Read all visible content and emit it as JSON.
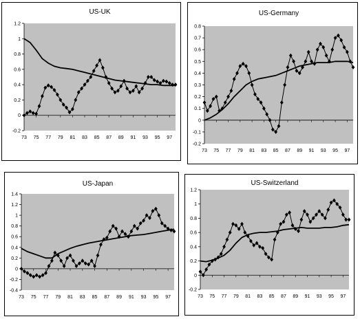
{
  "chart_data": [
    {
      "type": "line",
      "title": "US-UK",
      "ylim": [
        -0.2,
        1.2
      ],
      "yticks": [
        -0.2,
        0,
        0.2,
        0.4,
        0.6,
        0.8,
        1,
        1.2
      ],
      "xlim": [
        1973,
        1998
      ],
      "xticks": [
        "73",
        "75",
        "77",
        "79",
        "81",
        "83",
        "85",
        "87",
        "89",
        "91",
        "93",
        "95",
        "97"
      ],
      "grid": false,
      "legend": "none",
      "plot_bg": "#c0c0c0",
      "series": [
        {
          "marker": "diamond",
          "x": [
            1973.0,
            1973.5,
            1974.0,
            1974.5,
            1975.0,
            1975.5,
            1976.0,
            1976.5,
            1977.0,
            1977.5,
            1978.0,
            1978.5,
            1979.0,
            1979.5,
            1980.0,
            1980.5,
            1981.0,
            1981.5,
            1982.0,
            1982.5,
            1983.0,
            1983.5,
            1984.0,
            1984.5,
            1985.0,
            1985.5,
            1986.0,
            1986.5,
            1987.0,
            1987.5,
            1988.0,
            1988.5,
            1989.0,
            1989.5,
            1990.0,
            1990.5,
            1991.0,
            1991.5,
            1992.0,
            1992.5,
            1993.0,
            1993.5,
            1994.0,
            1994.5,
            1995.0,
            1995.5,
            1996.0,
            1996.5,
            1997.0,
            1997.5,
            1998.0
          ],
          "values": [
            0.0,
            0.03,
            0.05,
            0.03,
            0.02,
            0.12,
            0.25,
            0.36,
            0.39,
            0.37,
            0.33,
            0.27,
            0.2,
            0.14,
            0.1,
            0.04,
            0.08,
            0.2,
            0.3,
            0.35,
            0.4,
            0.45,
            0.5,
            0.58,
            0.65,
            0.72,
            0.62,
            0.5,
            0.42,
            0.35,
            0.3,
            0.32,
            0.38,
            0.45,
            0.35,
            0.3,
            0.32,
            0.38,
            0.3,
            0.35,
            0.42,
            0.5,
            0.5,
            0.46,
            0.44,
            0.42,
            0.45,
            0.44,
            0.42,
            0.4,
            0.4
          ]
        },
        {
          "marker": "none",
          "x": [
            1973,
            1974,
            1975,
            1976,
            1977,
            1978,
            1979,
            1980,
            1981,
            1982,
            1983,
            1984,
            1985,
            1986,
            1987,
            1988,
            1989,
            1990,
            1991,
            1992,
            1993,
            1994,
            1995,
            1996,
            1997,
            1998
          ],
          "values": [
            1.0,
            0.95,
            0.85,
            0.74,
            0.68,
            0.64,
            0.62,
            0.61,
            0.6,
            0.58,
            0.56,
            0.54,
            0.52,
            0.5,
            0.48,
            0.46,
            0.45,
            0.44,
            0.43,
            0.42,
            0.41,
            0.4,
            0.4,
            0.39,
            0.39,
            0.39
          ]
        }
      ]
    },
    {
      "type": "line",
      "title": "US-Germany",
      "ylim": [
        -0.2,
        0.8
      ],
      "yticks": [
        -0.2,
        -0.1,
        0,
        0.1,
        0.2,
        0.3,
        0.4,
        0.5,
        0.6,
        0.7,
        0.8
      ],
      "xlim": [
        1973,
        1998
      ],
      "xticks": [
        "73",
        "75",
        "77",
        "79",
        "81",
        "83",
        "85",
        "87",
        "89",
        "91",
        "93",
        "95",
        "97"
      ],
      "grid": false,
      "legend": "none",
      "plot_bg": "#c0c0c0",
      "series": [
        {
          "marker": "diamond",
          "x": [
            1973.0,
            1973.5,
            1974.0,
            1974.5,
            1975.0,
            1975.5,
            1976.0,
            1976.5,
            1977.0,
            1977.5,
            1978.0,
            1978.5,
            1979.0,
            1979.5,
            1980.0,
            1980.5,
            1981.0,
            1981.5,
            1982.0,
            1982.5,
            1983.0,
            1983.5,
            1984.0,
            1984.5,
            1985.0,
            1985.5,
            1986.0,
            1986.5,
            1987.0,
            1987.5,
            1988.0,
            1988.5,
            1989.0,
            1989.5,
            1990.0,
            1990.5,
            1991.0,
            1991.5,
            1992.0,
            1992.5,
            1993.0,
            1993.5,
            1994.0,
            1994.5,
            1995.0,
            1995.5,
            1996.0,
            1996.5,
            1997.0,
            1997.5,
            1998.0
          ],
          "values": [
            0.15,
            0.08,
            0.12,
            0.18,
            0.2,
            0.08,
            0.1,
            0.15,
            0.2,
            0.25,
            0.35,
            0.4,
            0.46,
            0.48,
            0.46,
            0.4,
            0.3,
            0.22,
            0.18,
            0.15,
            0.1,
            0.05,
            0.0,
            -0.08,
            -0.1,
            -0.05,
            0.15,
            0.3,
            0.45,
            0.55,
            0.5,
            0.42,
            0.4,
            0.45,
            0.5,
            0.58,
            0.5,
            0.48,
            0.6,
            0.65,
            0.62,
            0.55,
            0.5,
            0.6,
            0.7,
            0.72,
            0.68,
            0.62,
            0.58,
            0.5,
            0.45
          ]
        },
        {
          "marker": "none",
          "x": [
            1973,
            1974,
            1975,
            1976,
            1977,
            1978,
            1979,
            1980,
            1981,
            1982,
            1983,
            1984,
            1985,
            1986,
            1987,
            1988,
            1989,
            1990,
            1991,
            1992,
            1993,
            1994,
            1995,
            1996,
            1997,
            1998
          ],
          "values": [
            0.0,
            0.02,
            0.05,
            0.09,
            0.14,
            0.2,
            0.25,
            0.3,
            0.33,
            0.35,
            0.36,
            0.37,
            0.38,
            0.4,
            0.42,
            0.44,
            0.46,
            0.47,
            0.48,
            0.49,
            0.49,
            0.49,
            0.5,
            0.5,
            0.5,
            0.49
          ]
        }
      ]
    },
    {
      "type": "line",
      "title": "US-Japan",
      "ylim": [
        -0.4,
        1.4
      ],
      "yticks": [
        -0.4,
        -0.2,
        0,
        0.2,
        0.4,
        0.6,
        0.8,
        1,
        1.2,
        1.4
      ],
      "xlim": [
        1973,
        1998
      ],
      "xticks": [
        "73",
        "75",
        "77",
        "79",
        "81",
        "83",
        "85",
        "87",
        "89",
        "91",
        "93",
        "95",
        "97"
      ],
      "grid": false,
      "legend": "none",
      "plot_bg": "#c0c0c0",
      "series": [
        {
          "marker": "diamond",
          "x": [
            1973.0,
            1973.5,
            1974.0,
            1974.5,
            1975.0,
            1975.5,
            1976.0,
            1976.5,
            1977.0,
            1977.5,
            1978.0,
            1978.5,
            1979.0,
            1979.5,
            1980.0,
            1980.5,
            1981.0,
            1981.5,
            1982.0,
            1982.5,
            1983.0,
            1983.5,
            1984.0,
            1984.5,
            1985.0,
            1985.5,
            1986.0,
            1986.5,
            1987.0,
            1987.5,
            1988.0,
            1988.5,
            1989.0,
            1989.5,
            1990.0,
            1990.5,
            1991.0,
            1991.5,
            1992.0,
            1992.5,
            1993.0,
            1993.5,
            1994.0,
            1994.5,
            1995.0,
            1995.5,
            1996.0,
            1996.5,
            1997.0,
            1997.5,
            1998.0
          ],
          "values": [
            0.0,
            -0.05,
            -0.08,
            -0.12,
            -0.15,
            -0.12,
            -0.15,
            -0.12,
            -0.08,
            0.05,
            0.15,
            0.3,
            0.25,
            0.15,
            0.05,
            0.2,
            0.25,
            0.15,
            0.05,
            0.1,
            0.15,
            0.1,
            0.08,
            0.15,
            0.05,
            0.25,
            0.45,
            0.55,
            0.58,
            0.7,
            0.8,
            0.75,
            0.6,
            0.7,
            0.65,
            0.6,
            0.7,
            0.8,
            0.75,
            0.85,
            0.9,
            1.0,
            0.95,
            1.08,
            1.12,
            1.0,
            0.85,
            0.8,
            0.75,
            0.72,
            0.7
          ]
        },
        {
          "marker": "none",
          "x": [
            1973,
            1974,
            1975,
            1976,
            1977,
            1978,
            1979,
            1980,
            1981,
            1982,
            1983,
            1984,
            1985,
            1986,
            1987,
            1988,
            1989,
            1990,
            1991,
            1992,
            1993,
            1994,
            1995,
            1996,
            1997,
            1998
          ],
          "values": [
            0.38,
            0.32,
            0.28,
            0.24,
            0.2,
            0.2,
            0.28,
            0.33,
            0.38,
            0.42,
            0.45,
            0.48,
            0.5,
            0.52,
            0.54,
            0.56,
            0.58,
            0.6,
            0.62,
            0.63,
            0.64,
            0.66,
            0.68,
            0.7,
            0.72,
            0.74
          ]
        }
      ]
    },
    {
      "type": "line",
      "title": "US-Switzerland",
      "ylim": [
        -0.2,
        1.2
      ],
      "yticks": [
        -0.2,
        0,
        0.2,
        0.4,
        0.6,
        0.8,
        1,
        1.2
      ],
      "xlim": [
        1973,
        1998
      ],
      "xticks": [
        "73",
        "75",
        "77",
        "79",
        "81",
        "83",
        "85",
        "87",
        "89",
        "91",
        "93",
        "95",
        "97"
      ],
      "grid": false,
      "legend": "none",
      "plot_bg": "#c0c0c0",
      "series": [
        {
          "marker": "diamond",
          "x": [
            1973.0,
            1973.5,
            1974.0,
            1974.5,
            1975.0,
            1975.5,
            1976.0,
            1976.5,
            1977.0,
            1977.5,
            1978.0,
            1978.5,
            1979.0,
            1979.5,
            1980.0,
            1980.5,
            1981.0,
            1981.5,
            1982.0,
            1982.5,
            1983.0,
            1983.5,
            1984.0,
            1984.5,
            1985.0,
            1985.5,
            1986.0,
            1986.5,
            1987.0,
            1987.5,
            1988.0,
            1988.5,
            1989.0,
            1989.5,
            1990.0,
            1990.5,
            1991.0,
            1991.5,
            1992.0,
            1992.5,
            1993.0,
            1993.5,
            1994.0,
            1994.5,
            1995.0,
            1995.5,
            1996.0,
            1996.5,
            1997.0,
            1997.5,
            1998.0
          ],
          "values": [
            0.05,
            0.0,
            0.08,
            0.15,
            0.2,
            0.22,
            0.25,
            0.3,
            0.4,
            0.5,
            0.6,
            0.72,
            0.7,
            0.65,
            0.72,
            0.6,
            0.55,
            0.48,
            0.42,
            0.45,
            0.4,
            0.38,
            0.3,
            0.25,
            0.22,
            0.5,
            0.6,
            0.72,
            0.75,
            0.85,
            0.88,
            0.7,
            0.65,
            0.62,
            0.78,
            0.9,
            0.85,
            0.75,
            0.8,
            0.85,
            0.9,
            0.85,
            0.8,
            0.92,
            1.02,
            1.05,
            1.0,
            0.95,
            0.85,
            0.78,
            0.78
          ]
        },
        {
          "marker": "none",
          "x": [
            1973,
            1974,
            1975,
            1976,
            1977,
            1978,
            1979,
            1980,
            1981,
            1982,
            1983,
            1984,
            1985,
            1986,
            1987,
            1988,
            1989,
            1990,
            1991,
            1992,
            1993,
            1994,
            1995,
            1996,
            1997,
            1998
          ],
          "values": [
            0.2,
            0.19,
            0.21,
            0.24,
            0.28,
            0.35,
            0.45,
            0.53,
            0.57,
            0.59,
            0.6,
            0.6,
            0.61,
            0.62,
            0.64,
            0.65,
            0.66,
            0.67,
            0.66,
            0.66,
            0.66,
            0.67,
            0.67,
            0.68,
            0.7,
            0.71
          ]
        }
      ]
    }
  ]
}
